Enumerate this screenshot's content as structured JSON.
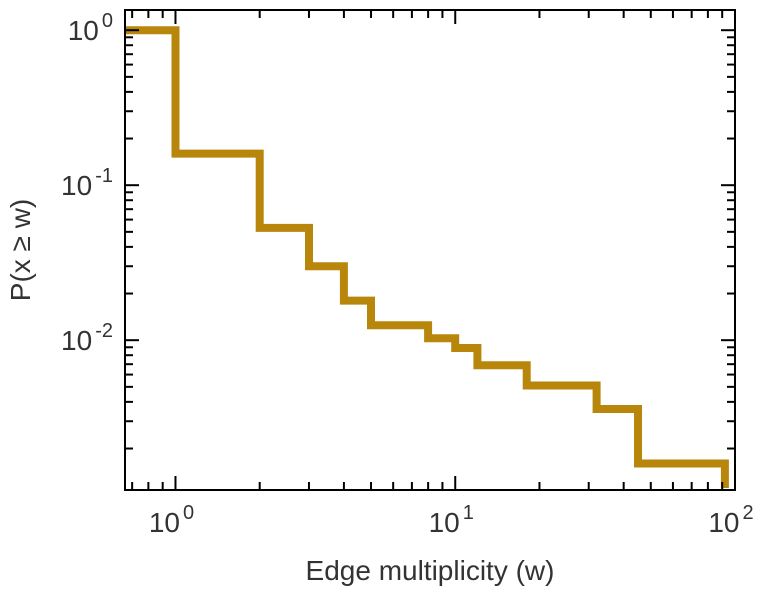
{
  "figure": {
    "background_color": "#ffffff"
  },
  "chart_data": {
    "type": "line",
    "variant": "step-ccdf",
    "title": "",
    "xlabel": "Edge multiplicity (w)",
    "ylabel": "P(x ≥ w)",
    "xscale": "log",
    "yscale": "log",
    "xlim": [
      0.66,
      100
    ],
    "ylim": [
      0.00108,
      1.35
    ],
    "grid": false,
    "legend": null,
    "line_color": "#b8860b",
    "line_width": 8,
    "axis_color": "#000000",
    "text_color": "#333333",
    "x_major_ticks": [
      1,
      10,
      100
    ],
    "y_major_ticks": [
      1,
      0.1,
      0.01
    ],
    "x_tick_labels": [
      {
        "base": "10",
        "exp": "0"
      },
      {
        "base": "10",
        "exp": "1"
      },
      {
        "base": "10",
        "exp": "2"
      }
    ],
    "y_tick_labels": [
      {
        "base": "10",
        "exp": "0"
      },
      {
        "base": "10",
        "exp": "-1"
      },
      {
        "base": "10",
        "exp": "-2"
      }
    ],
    "steps": [
      {
        "x": 0.66,
        "p": 1.0
      },
      {
        "x": 1,
        "p": 0.16
      },
      {
        "x": 2,
        "p": 0.053
      },
      {
        "x": 3,
        "p": 0.03
      },
      {
        "x": 4,
        "p": 0.018
      },
      {
        "x": 5,
        "p": 0.0125
      },
      {
        "x": 8,
        "p": 0.0103
      },
      {
        "x": 10,
        "p": 0.0089
      },
      {
        "x": 12,
        "p": 0.0069
      },
      {
        "x": 18,
        "p": 0.0051
      },
      {
        "x": 32,
        "p": 0.0036
      },
      {
        "x": 45,
        "p": 0.0016
      }
    ],
    "final_x": 92
  }
}
